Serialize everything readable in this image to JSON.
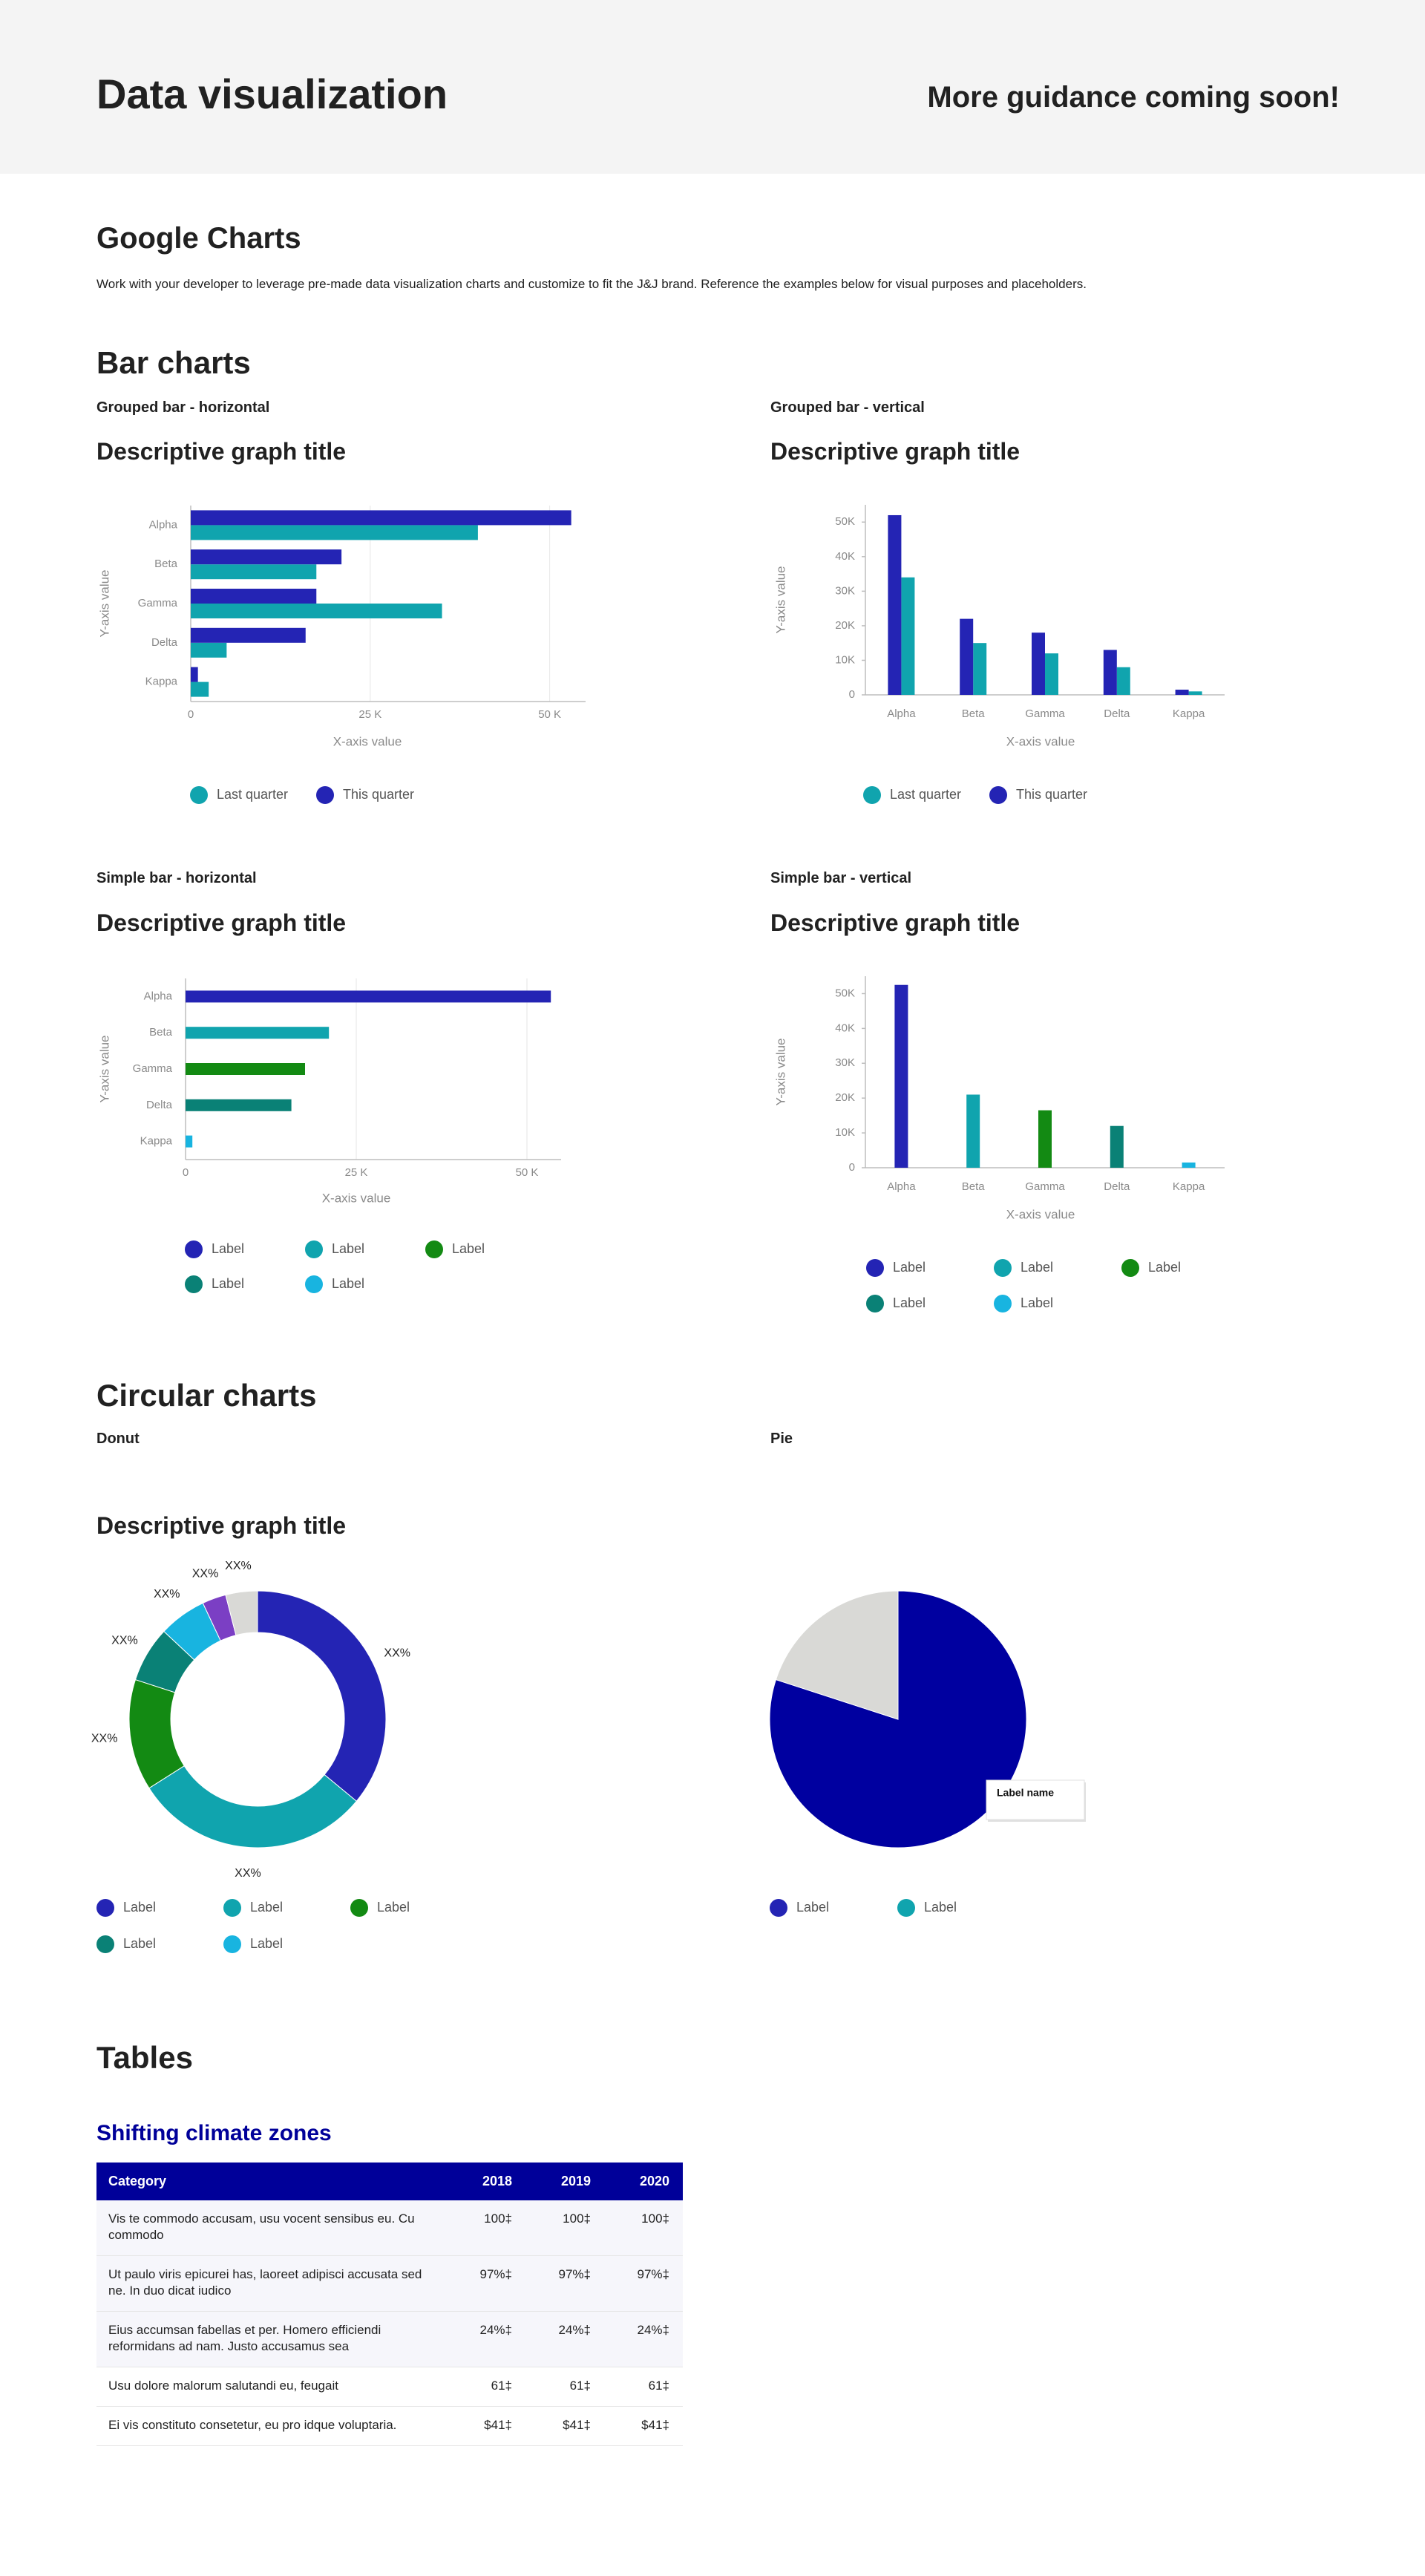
{
  "header": {
    "title": "Data visualization",
    "note": "More guidance coming soon!"
  },
  "intro": {
    "title": "Google Charts",
    "text": "Work with your developer to leverage pre-made data visualization charts and customize to fit the J&J brand. Reference the examples below for visual purposes and placeholders."
  },
  "sections": {
    "bar": "Bar charts",
    "circular": "Circular charts",
    "tables": "Tables"
  },
  "chart_data": [
    {
      "type": "bar",
      "orientation": "horizontal",
      "subtitle": "Grouped bar - horizontal",
      "title": "Descriptive graph title",
      "xlabel": "X-axis value",
      "ylabel": "Y-axis value",
      "categories": [
        "Alpha",
        "Beta",
        "Gamma",
        "Delta",
        "Kappa"
      ],
      "series": [
        {
          "name": "Last quarter",
          "color": "#10a4ae",
          "values": [
            40000,
            17500,
            35000,
            5000,
            2500
          ]
        },
        {
          "name": "This quarter",
          "color": "#2424b4",
          "values": [
            53000,
            21000,
            17500,
            16000,
            1000
          ]
        }
      ],
      "xlim": [
        0,
        55000
      ],
      "xticks": [
        0,
        {
          "value": 25000,
          "label": "25 K"
        },
        {
          "value": 50000,
          "label": "50 K"
        }
      ],
      "grid": true
    },
    {
      "type": "bar",
      "orientation": "vertical",
      "subtitle": "Grouped bar - vertical",
      "title": "Descriptive graph title",
      "xlabel": "X-axis value",
      "ylabel": "Y-axis value",
      "categories": [
        "Alpha",
        "Beta",
        "Gamma",
        "Delta",
        "Kappa"
      ],
      "series": [
        {
          "name": "Last quarter",
          "color": "#10a4ae",
          "values": [
            34000,
            15000,
            12000,
            8000,
            1000
          ]
        },
        {
          "name": "This quarter",
          "color": "#2424b4",
          "values": [
            52000,
            22000,
            18000,
            13000,
            1500
          ]
        }
      ],
      "ylim": [
        0,
        55000
      ],
      "yticks": [
        0,
        {
          "value": 10000,
          "label": "10K"
        },
        {
          "value": 20000,
          "label": "20K"
        },
        {
          "value": 30000,
          "label": "30K"
        },
        {
          "value": 40000,
          "label": "40K"
        },
        {
          "value": 50000,
          "label": "50K"
        }
      ],
      "grid": false
    },
    {
      "type": "bar",
      "orientation": "horizontal",
      "subtitle": "Simple bar - horizontal",
      "title": "Descriptive graph title",
      "xlabel": "X-axis value",
      "ylabel": "Y-axis value",
      "categories": [
        "Alpha",
        "Beta",
        "Gamma",
        "Delta",
        "Kappa"
      ],
      "values": [
        53500,
        21000,
        17500,
        15500,
        1000
      ],
      "colors": [
        "#2424b4",
        "#10a4ae",
        "#138a13",
        "#0a8176",
        "#18b4e0"
      ],
      "legend_labels": [
        "Label",
        "Label",
        "Label",
        "Label",
        "Label"
      ],
      "xlim": [
        0,
        55000
      ],
      "xticks": [
        0,
        {
          "value": 25000,
          "label": "25 K"
        },
        {
          "value": 50000,
          "label": "50 K"
        }
      ],
      "grid": true
    },
    {
      "type": "bar",
      "orientation": "vertical",
      "subtitle": "Simple bar - vertical",
      "title": "Descriptive graph title",
      "xlabel": "X-axis value",
      "ylabel": "Y-axis value",
      "categories": [
        "Alpha",
        "Beta",
        "Gamma",
        "Delta",
        "Kappa"
      ],
      "values": [
        52500,
        21000,
        16500,
        12000,
        1500
      ],
      "colors": [
        "#2424b4",
        "#10a4ae",
        "#138a13",
        "#0a8176",
        "#18b4e0"
      ],
      "legend_labels": [
        "Label",
        "Label",
        "Label",
        "Label",
        "Label"
      ],
      "ylim": [
        0,
        55000
      ],
      "yticks": [
        0,
        {
          "value": 10000,
          "label": "10K"
        },
        {
          "value": 20000,
          "label": "20K"
        },
        {
          "value": 30000,
          "label": "30K"
        },
        {
          "value": 40000,
          "label": "40K"
        },
        {
          "value": 50000,
          "label": "50K"
        }
      ],
      "grid": false
    },
    {
      "type": "donut",
      "subtitle": "Donut",
      "title": "Descriptive graph title",
      "values": [
        36,
        30,
        14,
        7,
        6,
        3,
        4
      ],
      "value_labels": [
        "XX%",
        "XX%",
        "XX%",
        "XX%",
        "XX%",
        "XX%",
        "XX%"
      ],
      "colors": [
        "#2424b4",
        "#10a4ae",
        "#138a13",
        "#0a8176",
        "#18b4e0",
        "#7b3fc4",
        "#d9d9d6"
      ],
      "legend_labels": [
        "Label",
        "Label",
        "Label",
        "Label",
        "Label"
      ]
    },
    {
      "type": "pie",
      "subtitle": "Pie",
      "values": [
        80,
        20
      ],
      "colors": [
        "#0000a0",
        "#d9d9d6"
      ],
      "legend_labels": [
        "Label",
        "Label"
      ],
      "legend_colors": [
        "#2424b4",
        "#10a4ae"
      ],
      "tooltip": "Label name"
    }
  ],
  "table": {
    "title": "Shifting climate zones",
    "columns": [
      "Category",
      "2018",
      "2019",
      "2020"
    ],
    "rows": [
      [
        "Vis te commodo accusam, usu vocent sensibus eu. Cu commodo",
        "100‡",
        "100‡",
        "100‡"
      ],
      [
        "Ut paulo viris epicurei has, laoreet adipisci accusata sed ne. In duo dicat iudico",
        "97%‡",
        "97%‡",
        "97%‡"
      ],
      [
        "Eius accumsan fabellas et per. Homero efficiendi reformidans ad nam. Justo accusamus sea",
        "24%‡",
        "24%‡",
        "24%‡"
      ],
      [
        "Usu dolore malorum salutandi eu, feugait",
        "61‡",
        "61‡",
        "61‡"
      ],
      [
        "Ei vis constituto consetetur, eu pro idque voluptaria.",
        "$41‡",
        "$41‡",
        "$41‡"
      ]
    ]
  }
}
